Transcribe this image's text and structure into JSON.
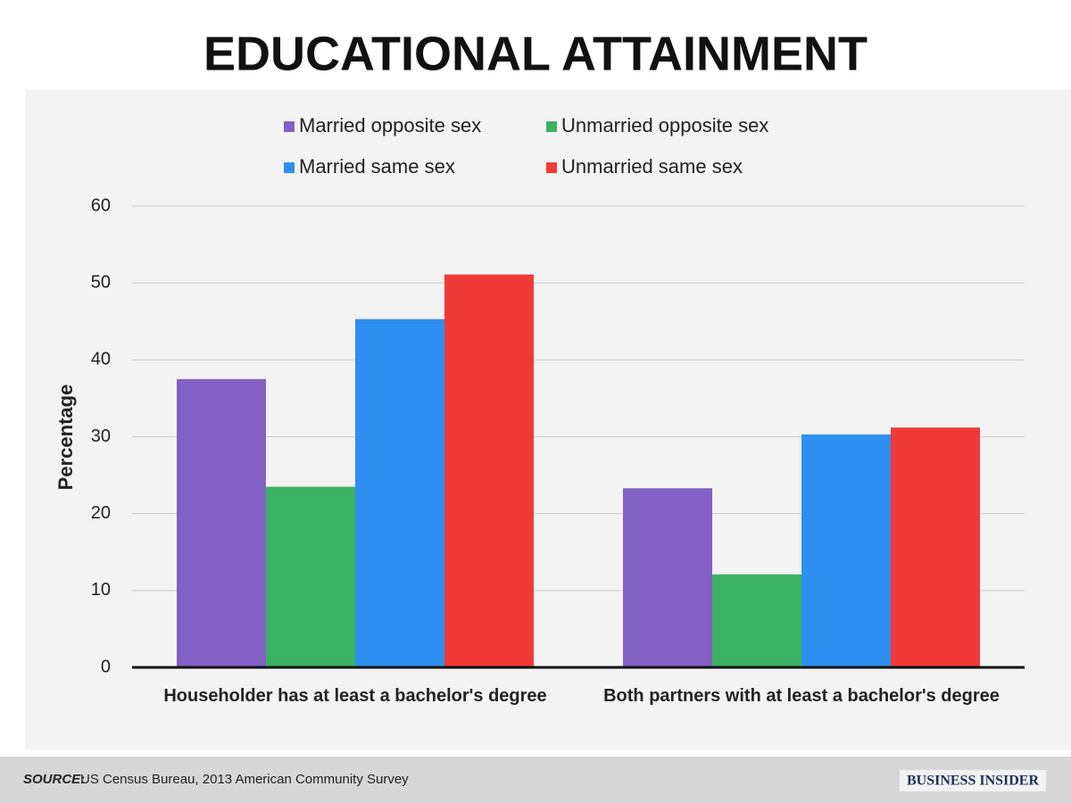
{
  "chart_data": {
    "type": "bar",
    "title": "EDUCATIONAL ATTAINMENT",
    "categories": [
      "Householder has at least a bachelor's degree",
      "Both partners with at least a bachelor's degree"
    ],
    "series": [
      {
        "name": "Married opposite sex",
        "color": "#8360c3",
        "values": [
          37.5,
          23.3
        ]
      },
      {
        "name": "Unmarried opposite sex",
        "color": "#3bb162",
        "values": [
          23.5,
          12.1
        ]
      },
      {
        "name": "Married same sex",
        "color": "#2f8ff0",
        "values": [
          45.3,
          30.3
        ]
      },
      {
        "name": "Unmarried same sex",
        "color": "#f03a37",
        "values": [
          51.1,
          31.2
        ]
      }
    ],
    "ylabel": "Percentage",
    "ylim": [
      0,
      60
    ],
    "yticks": [
      0,
      10,
      20,
      30,
      40,
      50,
      60
    ],
    "grid": true,
    "legend": "top"
  },
  "footer": {
    "source_label": "SOURCE:",
    "source": "US Census Bureau, 2013 American Community Survey",
    "brand": "BUSINESS INSIDER"
  }
}
